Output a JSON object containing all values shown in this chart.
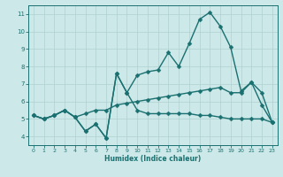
{
  "title": "",
  "xlabel": "Humidex (Indice chaleur)",
  "xlim": [
    -0.5,
    23.5
  ],
  "ylim": [
    3.5,
    11.5
  ],
  "xticks": [
    0,
    1,
    2,
    3,
    4,
    5,
    6,
    7,
    8,
    9,
    10,
    11,
    12,
    13,
    14,
    15,
    16,
    17,
    18,
    19,
    20,
    21,
    22,
    23
  ],
  "yticks": [
    4,
    5,
    6,
    7,
    8,
    9,
    10,
    11
  ],
  "background_color": "#cce8e8",
  "grid_color": "#b0d0d0",
  "line_color": "#1a7070",
  "series": [
    {
      "x": [
        0,
        1,
        2,
        3,
        4,
        5,
        6,
        7,
        8,
        9,
        10,
        11,
        12,
        13,
        14,
        15,
        16,
        17,
        18,
        19,
        20,
        21,
        22,
        23
      ],
      "y": [
        5.2,
        5.0,
        5.2,
        5.5,
        5.1,
        4.3,
        4.7,
        3.9,
        7.6,
        6.5,
        5.5,
        5.3,
        5.3,
        5.3,
        5.3,
        5.3,
        5.2,
        5.2,
        5.1,
        5.0,
        5.0,
        5.0,
        5.0,
        4.8
      ],
      "marker": "D",
      "markersize": 2.5,
      "linewidth": 1.0
    },
    {
      "x": [
        0,
        1,
        2,
        3,
        4,
        5,
        6,
        7,
        8,
        9,
        10,
        11,
        12,
        13,
        14,
        15,
        16,
        17,
        18,
        19,
        20,
        21,
        22,
        23
      ],
      "y": [
        5.2,
        5.0,
        5.2,
        5.5,
        5.1,
        4.3,
        4.7,
        3.9,
        7.6,
        6.5,
        7.5,
        7.7,
        7.8,
        8.8,
        8.0,
        9.3,
        10.7,
        11.1,
        10.3,
        9.1,
        6.6,
        7.1,
        5.8,
        4.8
      ],
      "marker": "D",
      "markersize": 2.5,
      "linewidth": 1.0
    },
    {
      "x": [
        0,
        1,
        2,
        3,
        4,
        5,
        6,
        7,
        8,
        9,
        10,
        11,
        12,
        13,
        14,
        15,
        16,
        17,
        18,
        19,
        20,
        21,
        22,
        23
      ],
      "y": [
        5.2,
        5.0,
        5.2,
        5.5,
        5.1,
        5.3,
        5.5,
        5.5,
        5.8,
        5.9,
        6.0,
        6.1,
        6.2,
        6.3,
        6.4,
        6.5,
        6.6,
        6.7,
        6.8,
        6.5,
        6.5,
        7.1,
        6.5,
        4.8
      ],
      "marker": "D",
      "markersize": 2.5,
      "linewidth": 1.0
    }
  ]
}
